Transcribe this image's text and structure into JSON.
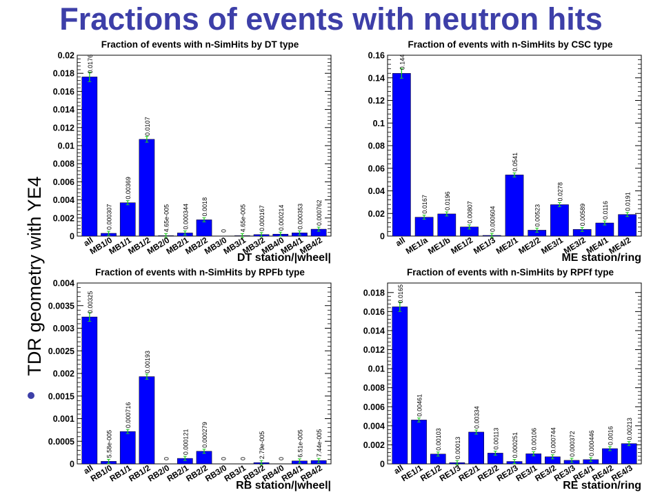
{
  "slide": {
    "title": "Fractions of events with neutron hits",
    "side_label": "TDR geometry with YE4",
    "accent": "#3d3fa8"
  },
  "chart_data": [
    {
      "type": "bar",
      "title": "Fraction of events with n-SimHits by DT type",
      "xlabel": "DT station/|wheel|",
      "ylabel": "",
      "ylim": [
        0,
        0.02
      ],
      "yticks": [
        0,
        0.002,
        0.004,
        0.006,
        0.008,
        0.01,
        0.012,
        0.014,
        0.016,
        0.018,
        0.02
      ],
      "categories": [
        "all",
        "MB1/0",
        "MB1/1",
        "MB1/2",
        "MB2/0",
        "MB2/1",
        "MB2/2",
        "MB3/0",
        "MB3/1",
        "MB3/2",
        "MB4/0",
        "MB4/1",
        "MB4/2"
      ],
      "values": [
        0.0176,
        0.000307,
        0.00369,
        0.0107,
        4.65e-05,
        0.000344,
        0.0018,
        0,
        4.65e-05,
        0.000167,
        0.000214,
        0.000353,
        0.000762
      ],
      "value_labels": [
        "0.0176",
        "0.000307",
        "0.00369",
        "0.0107",
        "4.65e-005",
        "0.000344",
        "0.0018",
        "0",
        "4.65e-005",
        "0.000167",
        "0.000214",
        "0.000353",
        "0.000762"
      ],
      "bar_color": "#0000ff",
      "grid": false
    },
    {
      "type": "bar",
      "title": "Fraction of events with n-SimHits by CSC type",
      "xlabel": "ME station/ring",
      "ylabel": "",
      "ylim": [
        0,
        0.16
      ],
      "yticks": [
        0,
        0.02,
        0.04,
        0.06,
        0.08,
        0.1,
        0.12,
        0.14,
        0.16
      ],
      "categories": [
        "all",
        "ME1/a",
        "ME1/b",
        "ME1/2",
        "ME1/3",
        "ME2/1",
        "ME2/2",
        "ME3/1",
        "ME3/2",
        "ME4/1",
        "ME4/2"
      ],
      "values": [
        0.144,
        0.0167,
        0.0196,
        0.00807,
        0.000604,
        0.0541,
        0.00523,
        0.0278,
        0.00589,
        0.0116,
        0.0191
      ],
      "value_labels": [
        "0.144",
        "0.0167",
        "0.0196",
        "0.00807",
        "0.000604",
        "0.0541",
        "0.00523",
        "0.0278",
        "0.00589",
        "0.0116",
        "0.0191"
      ],
      "bar_color": "#0000ff",
      "grid": false
    },
    {
      "type": "bar",
      "title": "Fraction of events with n-SimHits by RPFb type",
      "xlabel": "RB station/|wheel|",
      "ylabel": "",
      "ylim": [
        0,
        0.004
      ],
      "yticks": [
        0,
        0.0005,
        0.001,
        0.0015,
        0.002,
        0.0025,
        0.003,
        0.0035,
        0.004
      ],
      "categories": [
        "all",
        "RB1/0",
        "RB1/1",
        "RB1/2",
        "RB2/0",
        "RB2/1",
        "RB2/2",
        "RB3/0",
        "RB3/1",
        "RB3/2",
        "RB4/0",
        "RB4/1",
        "RB4/2"
      ],
      "values": [
        0.00325,
        5.58e-05,
        0.000716,
        0.00193,
        0,
        0.000121,
        0.000279,
        0,
        0,
        2.79e-05,
        0,
        6.51e-05,
        7.44e-05
      ],
      "value_labels": [
        "0.00325",
        "5.58e-005",
        "0.000716",
        "0.00193",
        "0",
        "0.000121",
        "0.000279",
        "0",
        "0",
        "2.79e-005",
        "0",
        "6.51e-005",
        "7.44e-005"
      ],
      "bar_color": "#0000ff",
      "grid": false
    },
    {
      "type": "bar",
      "title": "Fraction of events with n-SimHits by RPFf type",
      "xlabel": "RE station/ring",
      "ylabel": "",
      "ylim": [
        0,
        0.019
      ],
      "yticks": [
        0,
        0.002,
        0.004,
        0.006,
        0.008,
        0.01,
        0.012,
        0.014,
        0.016,
        0.018
      ],
      "categories": [
        "all",
        "RE1/1",
        "RE1/2",
        "RE1/3",
        "RE2/1",
        "RE2/2",
        "RE2/3",
        "RE3/1",
        "RE3/2",
        "RE3/3",
        "RE4/1",
        "RE4/2",
        "RE4/3"
      ],
      "values": [
        0.0165,
        0.00461,
        0.00103,
        0.00013,
        0.00334,
        0.00113,
        0.000251,
        0.00106,
        0.000744,
        0.000372,
        0.000446,
        0.0016,
        0.00213
      ],
      "value_labels": [
        "0.0165",
        "0.00461",
        "0.00103",
        "0.00013",
        "0.00334",
        "0.00113",
        "0.000251",
        "0.00106",
        "0.000744",
        "0.000372",
        "0.000446",
        "0.0016",
        "0.00213"
      ],
      "bar_color": "#0000ff",
      "grid": false
    }
  ]
}
